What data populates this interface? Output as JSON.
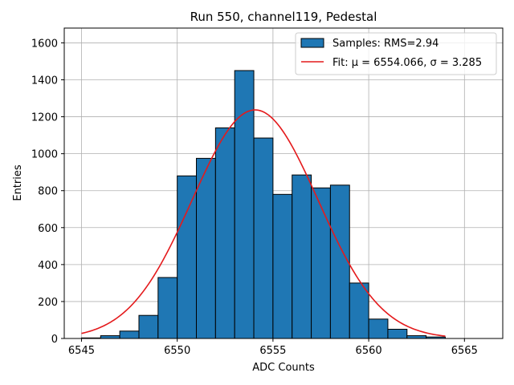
{
  "chart_data": {
    "type": "bar",
    "title": "Run 550, channel119, Pedestal",
    "xlabel": "ADC Counts",
    "ylabel": "Entries",
    "xlim": [
      6544.1,
      6567.0
    ],
    "ylim": [
      0,
      1680
    ],
    "xticks": [
      6545,
      6550,
      6555,
      6560,
      6565
    ],
    "yticks": [
      0,
      200,
      400,
      600,
      800,
      1000,
      1200,
      1400,
      1600
    ],
    "grid": true,
    "legend_position": "top-right",
    "bin_edges": [
      6545,
      6546,
      6547,
      6548,
      6549,
      6550,
      6551,
      6552,
      6553,
      6554,
      6555,
      6556,
      6557,
      6558,
      6559,
      6560,
      6561,
      6562,
      6563,
      6564
    ],
    "values": [
      3,
      15,
      40,
      125,
      330,
      880,
      975,
      1140,
      1450,
      1085,
      780,
      885,
      815,
      830,
      300,
      105,
      50,
      15,
      8
    ],
    "series": [
      {
        "name": "Samples: RMS=2.94",
        "kind": "histogram",
        "color": "#1f77b4",
        "edge_color": "#000000"
      },
      {
        "name": "Fit: μ = 6554.066, σ = 3.285",
        "kind": "gaussian-fit",
        "color": "#e41a1c",
        "mu": 6554.066,
        "sigma": 3.285,
        "amplitude": 1237,
        "x_range": [
          6545,
          6564
        ]
      }
    ]
  }
}
